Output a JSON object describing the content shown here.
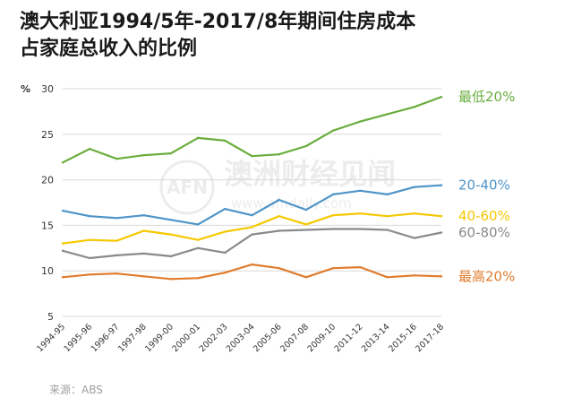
{
  "title": {
    "line1": "澳大利亚1994/5年-2017/8年期间住房成本",
    "line2": "占家庭总收入的比例"
  },
  "source": "来源：ABS",
  "watermark": {
    "logo": "AFN",
    "name": "澳洲财经见闻",
    "url": "www.afndaily.com"
  },
  "chart_data": {
    "type": "line",
    "title": "澳大利亚1994/5年-2017/8年期间住房成本占家庭总收入的比例",
    "ylabel": "%",
    "xlabel": "",
    "ylim": [
      5,
      30
    ],
    "yticks": [
      5,
      10,
      15,
      20,
      25,
      30
    ],
    "grid": true,
    "categories": [
      "1994-95",
      "1995-96",
      "1996-97",
      "1997-98",
      "1999-00",
      "2000-01",
      "2002-03",
      "2003-04",
      "2005-06",
      "2007-08",
      "2009-10",
      "2011-12",
      "2013-14",
      "2015-16",
      "2017-18"
    ],
    "series": [
      {
        "name": "最低20%",
        "color": "#6aad3d",
        "values": [
          21.9,
          23.4,
          22.3,
          22.7,
          22.9,
          24.6,
          24.3,
          22.6,
          22.8,
          23.7,
          25.4,
          26.4,
          27.2,
          28.0,
          29.1
        ]
      },
      {
        "name": "20-40%",
        "color": "#4f94c8",
        "values": [
          16.6,
          16.0,
          15.8,
          16.1,
          15.6,
          15.1,
          16.8,
          16.1,
          17.8,
          16.7,
          18.4,
          18.8,
          18.4,
          19.2,
          19.4
        ]
      },
      {
        "name": "40-60%",
        "color": "#f5c800",
        "values": [
          13.0,
          13.4,
          13.3,
          14.4,
          14.0,
          13.4,
          14.3,
          14.8,
          16.0,
          15.1,
          16.1,
          16.3,
          16.0,
          16.3,
          16.0
        ]
      },
      {
        "name": "60-80%",
        "color": "#8a8a8a",
        "values": [
          12.2,
          11.4,
          11.7,
          11.9,
          11.6,
          12.5,
          12.0,
          14.0,
          14.4,
          14.5,
          14.6,
          14.6,
          14.5,
          13.6,
          14.2
        ]
      },
      {
        "name": "最高20%",
        "color": "#e07c2e",
        "values": [
          9.3,
          9.6,
          9.7,
          9.4,
          9.1,
          9.2,
          9.8,
          10.7,
          10.3,
          9.3,
          10.3,
          10.4,
          9.3,
          9.5,
          9.4
        ]
      }
    ]
  }
}
